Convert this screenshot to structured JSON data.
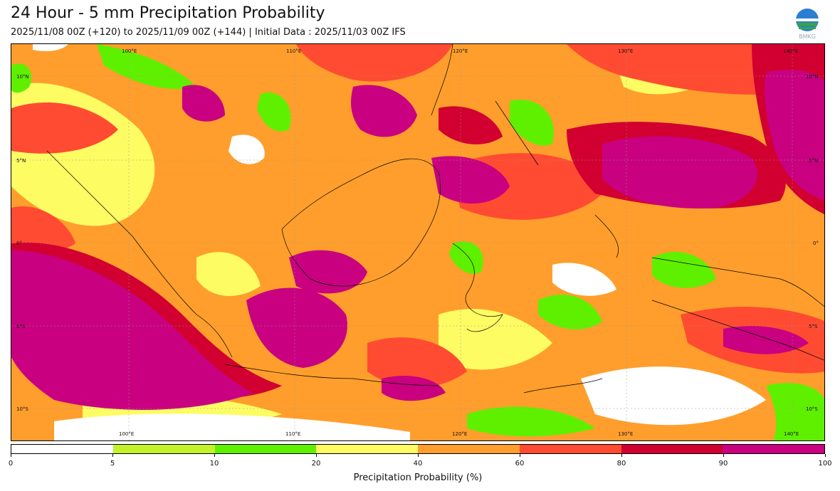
{
  "title": "24 Hour - 5 mm Precipitation Probability",
  "subtitle": "2025/11/08 00Z (+120) to 2025/11/09 00Z (+144) | Initial Data : 2025/11/03 00Z IFS",
  "logo_text": "BMKG",
  "map": {
    "longitude_labels_top": [
      "100°E",
      "110°E",
      "120°E",
      "130°E",
      "140°E"
    ],
    "longitude_labels_bottom": [
      "100°E",
      "110°E",
      "120°E",
      "130°E",
      "140°E"
    ],
    "latitude_labels_left": [
      "10°N",
      "5°N",
      "0°",
      "5°S",
      "10°S"
    ],
    "latitude_labels_right": [
      "10°N",
      "5°N",
      "0°",
      "5°S",
      "10°S"
    ],
    "background_color": "#ff9e2c"
  },
  "colorbar": {
    "ticks": [
      "0",
      "5",
      "10",
      "20",
      "40",
      "60",
      "80",
      "90",
      "100"
    ],
    "colors": [
      "#ffffff",
      "#c1f22a",
      "#5ff000",
      "#fdfc63",
      "#ff9e2c",
      "#ff4b31",
      "#d10030",
      "#c90080"
    ],
    "label": "Precipitation Probability (%)"
  }
}
